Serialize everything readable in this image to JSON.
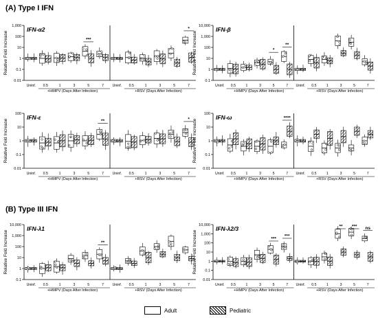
{
  "sections": [
    {
      "label": "(A)  Type I IFN"
    },
    {
      "label": "(B) Type III IFN"
    }
  ],
  "legend": {
    "adult": "Adult",
    "pediatric": "Pediatric"
  },
  "colors": {
    "adult_fill": "#ffffff",
    "pediatric_hatch": "#000000",
    "line": "#000000"
  },
  "chart_data": [
    {
      "type": "box",
      "title": "IFN-α2",
      "ylabel": "Relative Fold Increase",
      "yticks": [
        "0.01",
        "0.1",
        "1",
        "10",
        "100",
        "1,000"
      ],
      "ylim": [
        0.01,
        1000
      ],
      "yscale": "log",
      "groups": [
        {
          "xlabel": "+HMPV (Days After Infection)",
          "categories": [
            "Uninf.",
            "0.5",
            "1",
            "3",
            "5",
            "7"
          ]
        },
        {
          "xlabel": "+RSV (Days After Infection)",
          "categories": [
            "Uninf.",
            "0.5",
            "1",
            "3",
            "5",
            "7"
          ]
        }
      ],
      "series": [
        {
          "name": "Adult",
          "medians": [
            [
              1,
              1,
              1.1,
              1.4,
              4.5,
              2.5
            ],
            [
              1,
              1.2,
              1.1,
              1.6,
              3,
              45
            ]
          ]
        },
        {
          "name": "Pediatric",
          "medians": [
            [
              1,
              0.9,
              1.1,
              1.2,
              1,
              1.2
            ],
            [
              1,
              0.7,
              0.5,
              0.9,
              0.4,
              1.2
            ]
          ]
        }
      ],
      "annotations": [
        {
          "group": 0,
          "category": "5",
          "text": "***"
        },
        {
          "group": 1,
          "category": "7",
          "text": "*"
        }
      ]
    },
    {
      "type": "box",
      "title": "IFN-β",
      "ylabel": "Relative Fold Increase",
      "yticks": [
        "0.1",
        "1",
        "10",
        "100",
        "1,000",
        "10,000"
      ],
      "ylim": [
        0.1,
        10000
      ],
      "yscale": "log",
      "groups": [
        {
          "xlabel": "+HMPV (Days After Infection)",
          "categories": [
            "Uninf.",
            "0.5",
            "1",
            "3",
            "5",
            "7"
          ]
        },
        {
          "xlabel": "+RSV (Days After Infection)",
          "categories": [
            "Uninf.",
            "0.5",
            "1",
            "3",
            "5",
            "7"
          ]
        }
      ],
      "series": [
        {
          "name": "Adult",
          "medians": [
            [
              1,
              1.2,
              1.5,
              4,
              5,
              15
            ],
            [
              1,
              8,
              8,
              400,
              300,
              5
            ]
          ]
        },
        {
          "name": "Pediatric",
          "medians": [
            [
              1,
              1.1,
              1.5,
              3,
              1,
              1
            ],
            [
              1,
              4,
              6,
              30,
              20,
              2
            ]
          ]
        }
      ],
      "annotations": [
        {
          "group": 0,
          "category": "5",
          "text": "*"
        },
        {
          "group": 0,
          "category": "7",
          "text": "**"
        }
      ]
    },
    {
      "type": "box",
      "title": "IFN-ε",
      "ylabel": "Relative Fold Increase",
      "yticks": [
        "0.01",
        "0.1",
        "1",
        "10",
        "100"
      ],
      "ylim": [
        0.01,
        100
      ],
      "yscale": "log",
      "groups": [
        {
          "xlabel": "+HMPV (Days After Infection)",
          "categories": [
            "Uninf.",
            "0.5",
            "1",
            "3",
            "5",
            "7"
          ]
        },
        {
          "xlabel": "+RSV (Days After Infection)",
          "categories": [
            "Uninf.",
            "0.5",
            "1",
            "3",
            "5",
            "7"
          ]
        }
      ],
      "series": [
        {
          "name": "Adult",
          "medians": [
            [
              1,
              0.7,
              0.7,
              1,
              1,
              3
            ],
            [
              1,
              0.9,
              1.1,
              1.5,
              3,
              4
            ]
          ]
        },
        {
          "name": "Pediatric",
          "medians": [
            [
              1,
              0.8,
              1,
              1.2,
              1.1,
              1.3
            ],
            [
              1,
              0.8,
              1.2,
              1.4,
              0.9,
              0.8
            ]
          ]
        }
      ],
      "annotations": [
        {
          "group": 0,
          "category": "7",
          "text": "**"
        },
        {
          "group": 1,
          "category": "7",
          "text": "*"
        }
      ]
    },
    {
      "type": "box",
      "title": "IFN-ω",
      "ylabel": "Relative Fold Increase",
      "yticks": [
        "0.01",
        "0.1",
        "1",
        "10",
        "100"
      ],
      "ylim": [
        0.01,
        100
      ],
      "yscale": "log",
      "groups": [
        {
          "xlabel": "+HMPV (Days After Infection)",
          "categories": [
            "Uninf.",
            "0.5",
            "1",
            "3",
            "5",
            "7"
          ]
        },
        {
          "xlabel": "+RSV (Days After Infection)",
          "categories": [
            "Uninf.",
            "0.5",
            "1",
            "3",
            "5",
            "7"
          ]
        }
      ],
      "series": [
        {
          "name": "Adult",
          "medians": [
            [
              1,
              0.5,
              0.4,
              0.4,
              0.4,
              0.5
            ],
            [
              1,
              0.4,
              0.3,
              0.3,
              0.3,
              1
            ]
          ]
        },
        {
          "name": "Pediatric",
          "medians": [
            [
              1,
              1.4,
              0.6,
              0.6,
              1,
              5
            ],
            [
              1,
              3,
              1.5,
              2,
              5,
              3
            ]
          ]
        }
      ],
      "annotations": [
        {
          "group": 0,
          "category": "7",
          "text": "****"
        }
      ]
    },
    {
      "type": "box",
      "title": "IFN-λ1",
      "ylabel": "Relative Fold Increase",
      "yticks": [
        "0.1",
        "1",
        "10",
        "100",
        "1,000",
        "10,000"
      ],
      "ylim": [
        0.1,
        10000
      ],
      "yscale": "log",
      "groups": [
        {
          "xlabel": "+HMPV (Days After Infection)",
          "categories": [
            "Uninf.",
            "0.5",
            "1",
            "3",
            "5",
            "7"
          ]
        },
        {
          "xlabel": "+RSV (Days After Infection)",
          "categories": [
            "Uninf.",
            "0.5",
            "1",
            "3",
            "5",
            "7"
          ]
        }
      ],
      "series": [
        {
          "name": "Adult",
          "medians": [
            [
              1,
              1,
              1.5,
              8,
              15,
              20
            ],
            [
              1,
              5,
              40,
              100,
              300,
              50
            ]
          ]
        },
        {
          "name": "Pediatric",
          "medians": [
            [
              1,
              1.2,
              1.2,
              3,
              3,
              5
            ],
            [
              1,
              3,
              10,
              20,
              10,
              8
            ]
          ]
        }
      ],
      "annotations": [
        {
          "group": 0,
          "category": "7",
          "text": "**"
        }
      ]
    },
    {
      "type": "box",
      "title": "IFN-λ2/3",
      "ylabel": "Relative Fold Increase",
      "yticks": [
        "0.01",
        "0.1",
        "1",
        "10",
        "100",
        "1,000",
        "10,000"
      ],
      "ylim": [
        0.01,
        10000
      ],
      "yscale": "log",
      "groups": [
        {
          "xlabel": "+HMPV (Days After Infection)",
          "categories": [
            "Uninf.",
            "0.5",
            "1",
            "3",
            "5",
            "7"
          ]
        },
        {
          "xlabel": "+RSV (Days After Infection)",
          "categories": [
            "Uninf.",
            "0.5",
            "1",
            "3",
            "5",
            "7"
          ]
        }
      ],
      "series": [
        {
          "name": "Adult",
          "medians": [
            [
              1,
              1,
              1,
              5,
              20,
              40
            ],
            [
              1,
              1,
              3,
              1000,
              1500,
              300
            ]
          ]
        },
        {
          "name": "Pediatric",
          "medians": [
            [
              1,
              0.7,
              0.8,
              2,
              1.5,
              2
            ],
            [
              1,
              1,
              1,
              10,
              5,
              3
            ]
          ]
        }
      ],
      "annotations": [
        {
          "group": 0,
          "category": "5",
          "text": "***"
        },
        {
          "group": 0,
          "category": "7",
          "text": "***"
        },
        {
          "group": 1,
          "category": "3",
          "text": "**"
        },
        {
          "group": 1,
          "category": "5",
          "text": "***"
        },
        {
          "group": 1,
          "category": "7",
          "text": "ns"
        }
      ]
    }
  ]
}
